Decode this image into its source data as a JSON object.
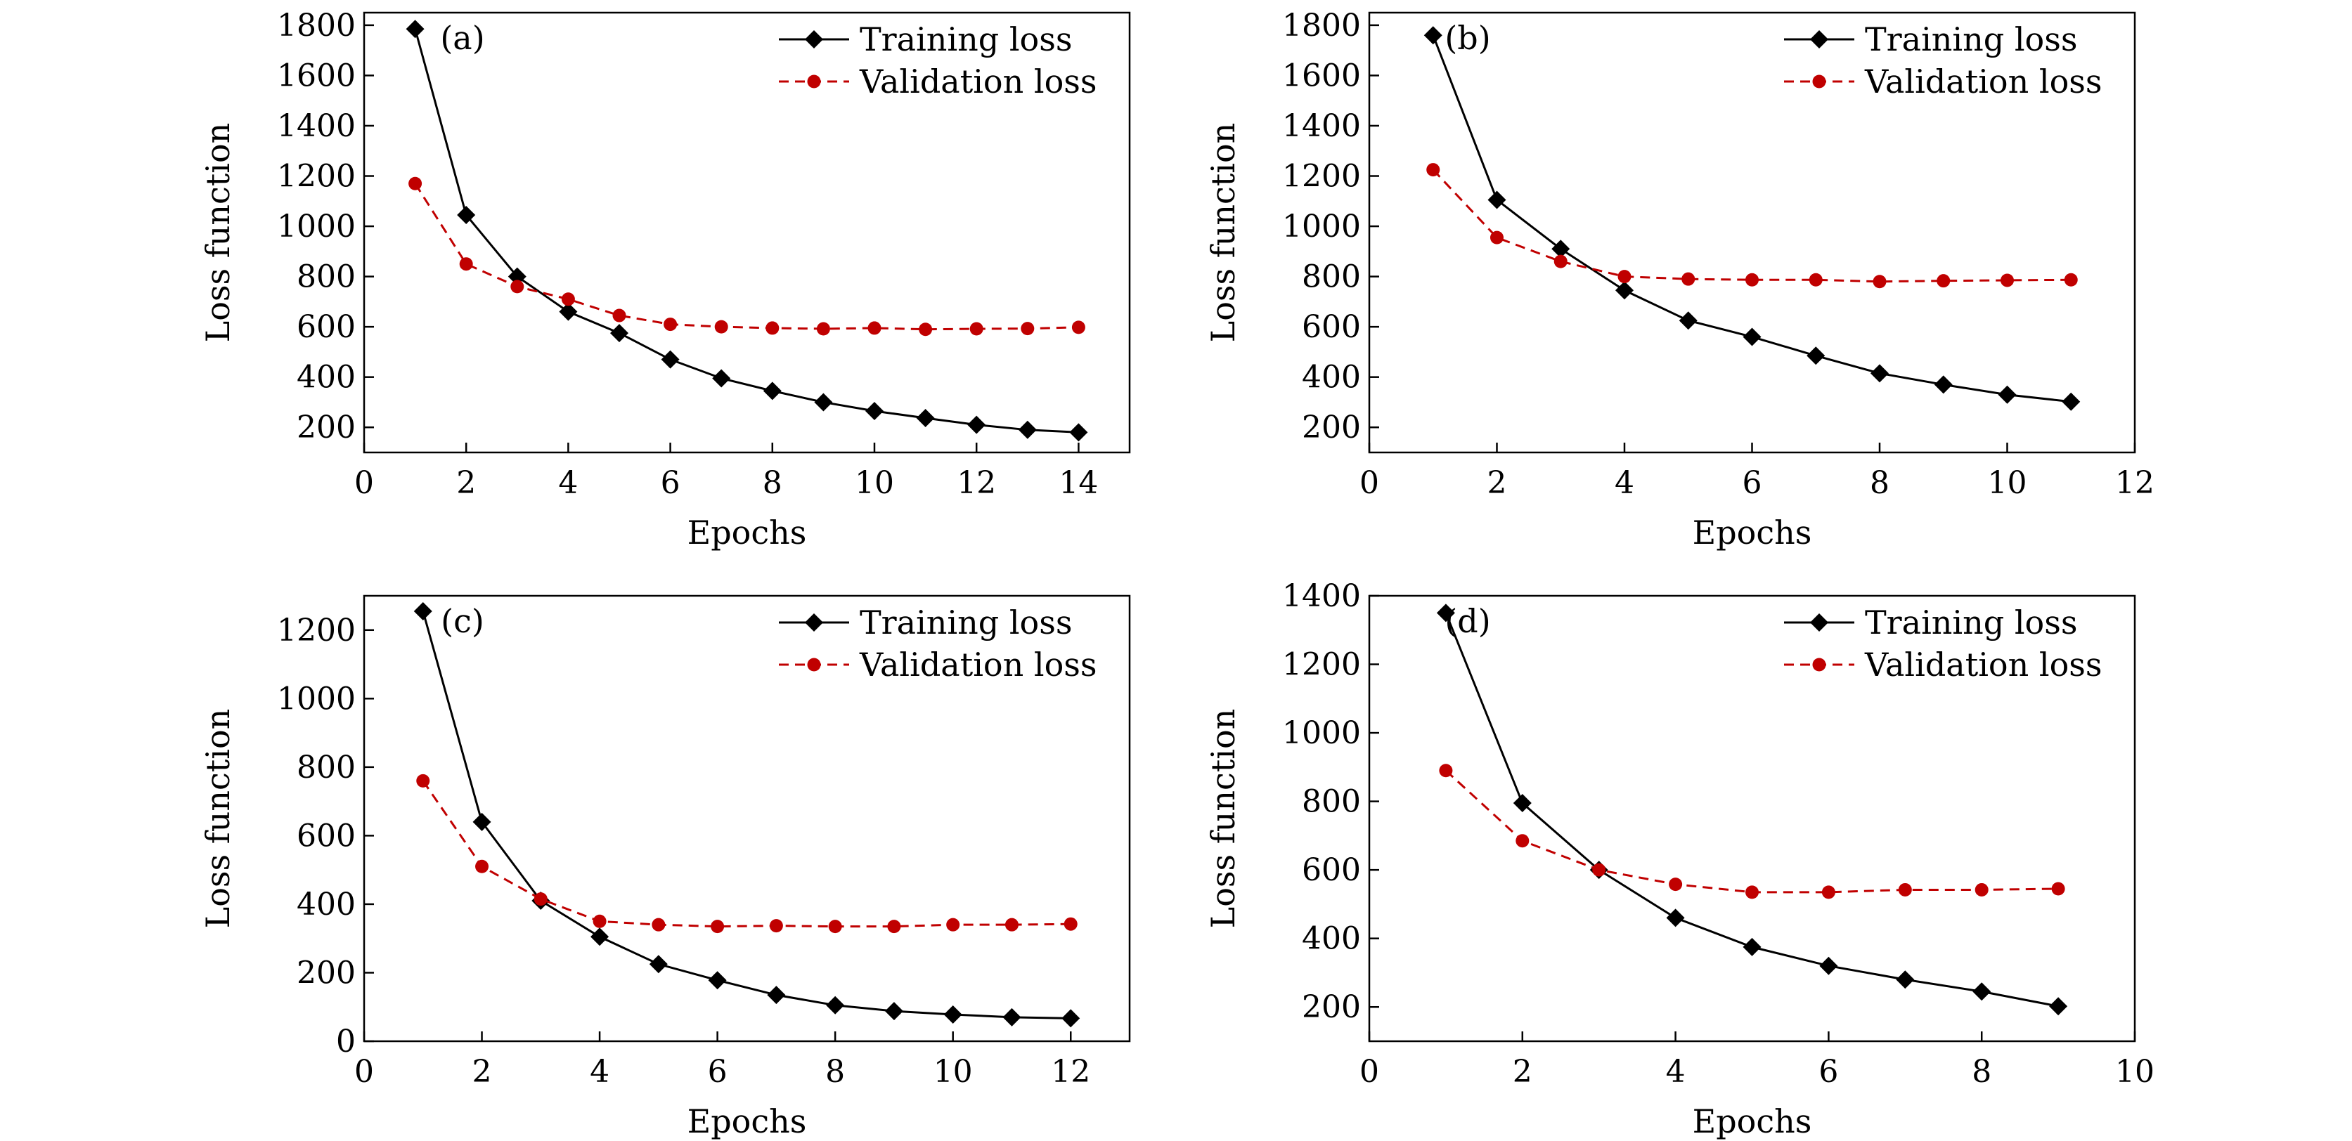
{
  "figure": {
    "colors": {
      "training": "#000000",
      "validation": "#c00000"
    }
  },
  "chart_data": [
    {
      "type": "line",
      "panel_label": "(a)",
      "xlabel": "Epochs",
      "ylabel": "Loss function",
      "xlim": [
        0,
        15
      ],
      "ylim": [
        100,
        1850
      ],
      "xticks": [
        0,
        2,
        4,
        6,
        8,
        10,
        12,
        14
      ],
      "yticks": [
        200,
        400,
        600,
        800,
        1000,
        1200,
        1400,
        1600,
        1800
      ],
      "legend_position": "top-right",
      "x": [
        1,
        2,
        3,
        4,
        5,
        6,
        7,
        8,
        9,
        10,
        11,
        12,
        13,
        14
      ],
      "series": [
        {
          "name": "Training loss",
          "marker": "diamond",
          "style": "solid",
          "values": [
            1785,
            1045,
            800,
            660,
            575,
            470,
            395,
            345,
            300,
            265,
            237,
            210,
            190,
            180
          ]
        },
        {
          "name": "Validation loss",
          "marker": "circle",
          "style": "dashed",
          "values": [
            1170,
            850,
            760,
            710,
            645,
            610,
            600,
            595,
            592,
            595,
            590,
            592,
            593,
            598
          ]
        }
      ]
    },
    {
      "type": "line",
      "panel_label": "(b)",
      "xlabel": "Epochs",
      "ylabel": "Loss function",
      "xlim": [
        0,
        12
      ],
      "ylim": [
        100,
        1850
      ],
      "xticks": [
        0,
        2,
        4,
        6,
        8,
        10,
        12
      ],
      "yticks": [
        200,
        400,
        600,
        800,
        1000,
        1200,
        1400,
        1600,
        1800
      ],
      "legend_position": "top-right",
      "x": [
        1,
        2,
        3,
        4,
        5,
        6,
        7,
        8,
        9,
        10,
        11
      ],
      "series": [
        {
          "name": "Training loss",
          "marker": "diamond",
          "style": "solid",
          "values": [
            1760,
            1105,
            910,
            745,
            625,
            560,
            485,
            415,
            370,
            330,
            302
          ]
        },
        {
          "name": "Validation loss",
          "marker": "circle",
          "style": "dashed",
          "values": [
            1225,
            955,
            860,
            800,
            790,
            787,
            787,
            780,
            783,
            785,
            787
          ]
        }
      ]
    },
    {
      "type": "line",
      "panel_label": "(c)",
      "xlabel": "Epochs",
      "ylabel": "Loss function",
      "xlim": [
        0,
        13
      ],
      "ylim": [
        0,
        1300
      ],
      "xticks": [
        0,
        2,
        4,
        6,
        8,
        10,
        12
      ],
      "yticks": [
        0,
        200,
        400,
        600,
        800,
        1000,
        1200
      ],
      "legend_position": "top-right",
      "x": [
        1,
        2,
        3,
        4,
        5,
        6,
        7,
        8,
        9,
        10,
        11,
        12
      ],
      "series": [
        {
          "name": "Training loss",
          "marker": "diamond",
          "style": "solid",
          "values": [
            1255,
            640,
            410,
            305,
            225,
            178,
            135,
            105,
            88,
            78,
            70,
            67
          ]
        },
        {
          "name": "Validation loss",
          "marker": "circle",
          "style": "dashed",
          "values": [
            760,
            510,
            415,
            350,
            340,
            335,
            337,
            335,
            335,
            340,
            340,
            342
          ]
        }
      ]
    },
    {
      "type": "line",
      "panel_label": "(d)",
      "xlabel": "Epochs",
      "ylabel": "Loss function",
      "xlim": [
        0,
        10
      ],
      "ylim": [
        100,
        1400
      ],
      "xticks": [
        0,
        2,
        4,
        6,
        8,
        10
      ],
      "yticks": [
        200,
        400,
        600,
        800,
        1000,
        1200,
        1400
      ],
      "legend_position": "top-right",
      "x": [
        1,
        2,
        3,
        4,
        5,
        6,
        7,
        8,
        9
      ],
      "series": [
        {
          "name": "Training loss",
          "marker": "diamond",
          "style": "solid",
          "values": [
            1350,
            795,
            600,
            460,
            375,
            320,
            280,
            245,
            202
          ]
        },
        {
          "name": "Validation loss",
          "marker": "circle",
          "style": "dashed",
          "values": [
            890,
            685,
            600,
            558,
            535,
            535,
            542,
            542,
            545
          ]
        }
      ]
    }
  ]
}
